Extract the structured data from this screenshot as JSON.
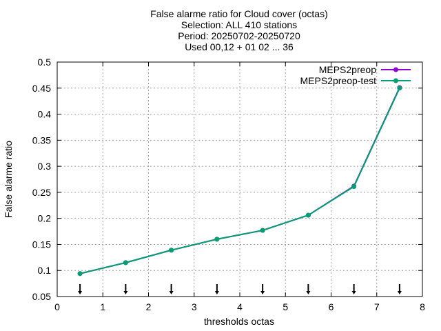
{
  "chart_data": {
    "type": "line",
    "title_lines": [
      "False alarme ratio  for Cloud cover (octas)",
      "Selection: ALL    410 stations",
      "Period: 20250702-20250720",
      "Used 00,12 + 01 02 ... 36"
    ],
    "xlabel": "thresholds octas",
    "ylabel": "False alarme ratio",
    "xlim": [
      0,
      8
    ],
    "ylim": [
      0.05,
      0.5
    ],
    "xticks": [
      0,
      1,
      2,
      3,
      4,
      5,
      6,
      7,
      8
    ],
    "xtick_labels": [
      "0",
      "1",
      "2",
      "3",
      "4",
      "5",
      "6",
      "7",
      "8"
    ],
    "yticks": [
      0.05,
      0.1,
      0.15,
      0.2,
      0.25,
      0.3,
      0.35,
      0.4,
      0.45,
      0.5
    ],
    "ytick_labels": [
      "0.05",
      "0.1",
      "0.15",
      "0.2",
      "0.25",
      "0.3",
      "0.35",
      "0.4",
      "0.45",
      "0.5"
    ],
    "grid": true,
    "legend_position": "top-right",
    "x": [
      0.5,
      1.5,
      2.5,
      3.5,
      4.5,
      5.5,
      6.5,
      7.5
    ],
    "series": [
      {
        "name": "MEPS2preop",
        "color": "#9400d3",
        "values": [
          0.094,
          0.115,
          0.139,
          0.16,
          0.177,
          0.206,
          0.262,
          0.451
        ]
      },
      {
        "name": "MEPS2preop-test",
        "color": "#009e73",
        "values": [
          0.094,
          0.115,
          0.139,
          0.16,
          0.177,
          0.206,
          0.261,
          0.45
        ]
      }
    ],
    "marker_arrows_x": [
      0.5,
      1.5,
      2.5,
      3.5,
      4.5,
      5.5,
      6.5,
      7.5
    ]
  }
}
